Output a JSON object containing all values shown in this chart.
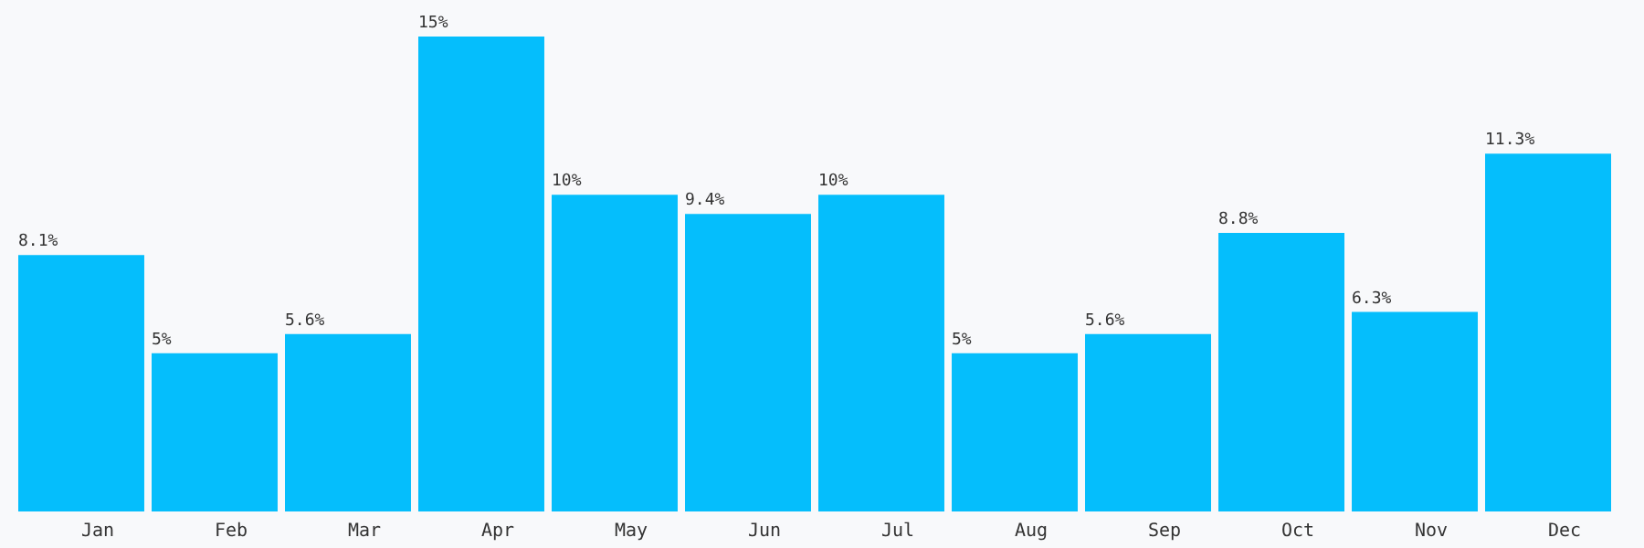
{
  "chart_data": {
    "type": "bar",
    "categories": [
      "Jan",
      "Feb",
      "Mar",
      "Apr",
      "May",
      "Jun",
      "Jul",
      "Aug",
      "Sep",
      "Oct",
      "Nov",
      "Dec"
    ],
    "values": [
      8.1,
      5,
      5.6,
      15,
      10,
      9.4,
      10,
      5,
      5.6,
      8.8,
      6.3,
      11.3
    ],
    "value_labels": [
      "8.1%",
      "5%",
      "5.6%",
      "15%",
      "10%",
      "9.4%",
      "10%",
      "5%",
      "5.6%",
      "8.8%",
      "6.3%",
      "11.3%"
    ],
    "color": "#05befc"
  }
}
